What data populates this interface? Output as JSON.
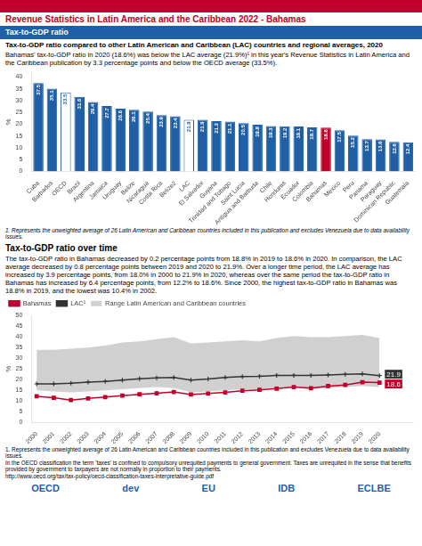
{
  "title": "Revenue Statistics in Latin America and the Caribbean 2022 - Bahamas",
  "color": "#c0002a",
  "subtitle": "Tax-to-GDP ratio",
  "annotations": [
    {
      "text": "OECD"
    },
    {
      "text": "dev"
    },
    {
      "text": "EU"
    },
    {
      "text": "IDB"
    },
    {
      "text": "ECLBE"
    }
  ],
  "chart_data": [
    {
      "type": "bar",
      "title": "Tax-to-GDP ratio compared to other Latin American and Caribbean (LAC) countries and regional averages, 2020",
      "annotations": [
        {
          "text": "Bahamas' tax-to-GDP ratio in 2020 (18.6%) was below the LAC average (21.9%)¹ in this year's Revenue Statistics in Latin America and the Caribbean publication by 3.3 percentage points and below the OECD average (33.5%)."
        },
        {
          "text": "1. Represents the unweighted average of 26 Latin American and Caribbean countries included in this publication and excludes Venezuela due to data availability issues."
        }
      ],
      "categories": [
        "Cuba",
        "Barbados",
        "OECD",
        "Brazil",
        "Argentina",
        "Jamaica",
        "Uruguay",
        "Belize",
        "Nicaragua",
        "Costa Rica",
        "Belize2",
        "LAC",
        "El Salvador",
        "Guyana",
        "Trinidad and Tobago",
        "Saint Lucia",
        "Antigua and Barbuda",
        "Chile",
        "Honduras",
        "Ecuador",
        "Colombia",
        "Bahamas",
        "Mexico",
        "Peru",
        "Panama",
        "Paraguay",
        "Dominican Republic",
        "Guatemala"
      ],
      "values": [
        37.5,
        35.1,
        33.5,
        31.6,
        29.4,
        27.7,
        26.6,
        26.1,
        25.4,
        23.9,
        23.4,
        21.9,
        21.9,
        21.3,
        21.1,
        20.5,
        19.8,
        19.3,
        19.2,
        19.1,
        18.7,
        18.6,
        17.5,
        15.2,
        13.7,
        13.6,
        12.6,
        12.4
      ],
      "color": "#1f5fa6",
      "colors": [
        "#1f5fa6",
        "#1f5fa6",
        "#ffffff",
        "#1f5fa6",
        "#1f5fa6",
        "#1f5fa6",
        "#1f5fa6",
        "#1f5fa6",
        "#1f5fa6",
        "#1f5fa6",
        "#1f5fa6",
        "#ffffff",
        "#1f5fa6",
        "#1f5fa6",
        "#1f5fa6",
        "#1f5fa6",
        "#1f5fa6",
        "#1f5fa6",
        "#1f5fa6",
        "#1f5fa6",
        "#1f5fa6",
        "#c0002a",
        "#1f5fa6",
        "#1f5fa6",
        "#1f5fa6",
        "#1f5fa6",
        "#1f5fa6",
        "#1f5fa6"
      ],
      "ylabel": "%",
      "ylim": [
        0,
        42
      ],
      "yticks": [
        0,
        5,
        10,
        15,
        20,
        25,
        30,
        35,
        40
      ],
      "data_labels": true,
      "grid": false
    },
    {
      "type": "line",
      "title": "Tax-to-GDP ratio over time",
      "annotations": [
        {
          "text": "The tax-to-GDP ratio in Bahamas decreased by 0.2 percentage points from 18.8% in 2019 to 18.6% in 2020. In comparison, the LAC average decreased by 0.8 percentage points between 2019 and 2020 to 21.9%. Over a longer time period, the LAC average has increased by 3.9 percentage points, from 18.0% in 2000 to 21.9% in 2020, whereas over the same period the tax-to-GDP ratio in Bahamas has increased by 6.4 percentage points, from 12.2% to 18.6%. Since 2000, the highest tax-to-GDP ratio in Bahamas was 18.8% in 2019, and the lowest was 10.4% in 2002."
        },
        {
          "text": "1. Represents the unweighted average of 26 Latin American and Caribbean countries included in this publication and excludes Venezuela due to data availability issues."
        },
        {
          "text": "In the OECD classification the term 'taxes' is confined to compulsory unrequited payments to general government. Taxes are unrequited in the sense that benefits provided by government to taxpayers are not normally in proportion to their payments."
        },
        {
          "text": "http://www.oecd.org/tax/tax-policy/oecd-classification-taxes-interpretative-guide.pdf"
        },
        {
          "text": "21.9",
          "x": 2020,
          "y": 21.9,
          "color": "#333333"
        },
        {
          "text": "18.6",
          "x": 2020,
          "y": 18.6,
          "color": "#c0002a"
        }
      ],
      "x": [
        2000,
        2001,
        2002,
        2003,
        2004,
        2005,
        2006,
        2007,
        2008,
        2009,
        2010,
        2011,
        2012,
        2013,
        2014,
        2015,
        2016,
        2017,
        2018,
        2019,
        2020
      ],
      "series": [
        {
          "name": "Range Latin American and Caribbean countries",
          "type": "area",
          "color": "#d0d0d0",
          "lower": [
            15.0,
            14.5,
            14.0,
            14.5,
            15.0,
            15.5,
            16.0,
            16.5,
            16.0,
            14.0,
            14.5,
            15.0,
            15.5,
            15.5,
            16.0,
            16.5,
            15.5,
            16.0,
            16.5,
            17.0,
            16.5
          ],
          "upper": [
            34.0,
            34.0,
            34.5,
            35.0,
            36.0,
            37.5,
            38.0,
            39.0,
            40.0,
            37.0,
            37.5,
            38.0,
            38.5,
            38.0,
            39.5,
            40.5,
            40.0,
            40.0,
            40.5,
            41.0,
            39.5
          ]
        },
        {
          "name": "Bahamas",
          "type": "line",
          "color": "#c0002a",
          "marker": "square",
          "values": [
            12.2,
            11.5,
            10.4,
            11.2,
            11.8,
            12.5,
            13.1,
            13.6,
            14.2,
            13.0,
            13.5,
            14.0,
            14.8,
            15.2,
            15.8,
            16.5,
            16.0,
            17.0,
            17.5,
            18.8,
            18.6
          ]
        },
        {
          "name": "LAC¹",
          "type": "line",
          "color": "#333333",
          "marker": "plus",
          "values": [
            18.0,
            18.0,
            18.3,
            18.8,
            19.2,
            19.8,
            20.4,
            20.8,
            21.0,
            19.8,
            20.3,
            21.0,
            21.5,
            21.6,
            22.0,
            22.0,
            22.0,
            22.2,
            22.5,
            22.7,
            21.9
          ]
        }
      ],
      "ylabel": "%",
      "xlim": [
        1999.7,
        2022.0
      ],
      "xticks": [
        2000,
        2001,
        2002,
        2003,
        2004,
        2005,
        2006,
        2007,
        2008,
        2009,
        2010,
        2011,
        2012,
        2013,
        2014,
        2015,
        2016,
        2017,
        2018,
        2019,
        2020
      ],
      "ylim": [
        0,
        50
      ],
      "yticks": [
        0,
        5,
        10,
        15,
        20,
        25,
        30,
        35,
        40,
        45,
        50
      ],
      "legend": "top",
      "grid": false
    }
  ]
}
